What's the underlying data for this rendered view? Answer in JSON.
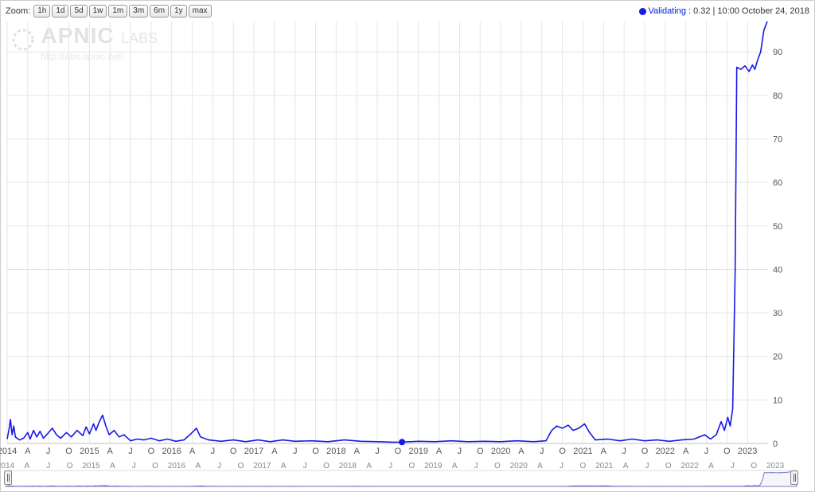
{
  "zoom": {
    "label": "Zoom:",
    "buttons": [
      "1h",
      "1d",
      "5d",
      "1w",
      "1m",
      "3m",
      "6m",
      "1y",
      "max"
    ]
  },
  "legend": {
    "series_name": "Validating",
    "series_color": "#1818e8",
    "value_text": ": 0.32",
    "separator": " | ",
    "timestamp": "10:00 October 24, 2018"
  },
  "watermark": {
    "brand": "APNIC",
    "sub": "LABS",
    "url": "http://abs.apnic.net/",
    "color": "#e2e2e2"
  },
  "chart": {
    "type": "line",
    "background_color": "#ffffff",
    "grid_color": "#e5e5e5",
    "axis_text_color": "#555555",
    "series_color": "#1818e8",
    "line_width": 1.6,
    "ylim": [
      0,
      97
    ],
    "ytick_step": 10,
    "yticks": [
      0,
      10,
      20,
      30,
      40,
      50,
      60,
      70,
      80,
      90
    ],
    "xlim_years": [
      2014,
      2023.25
    ],
    "x_year_ticks": [
      2014,
      2015,
      2016,
      2017,
      2018,
      2019,
      2020,
      2021,
      2022,
      2023
    ],
    "x_minor_labels": [
      "A",
      "J",
      "O"
    ],
    "marker": {
      "x_year": 2018.8,
      "y": 0.32,
      "radius": 4,
      "color": "#1818e8"
    },
    "data": [
      [
        2014.0,
        1.0
      ],
      [
        2014.02,
        3.0
      ],
      [
        2014.04,
        5.5
      ],
      [
        2014.06,
        2.0
      ],
      [
        2014.08,
        4.0
      ],
      [
        2014.1,
        1.5
      ],
      [
        2014.15,
        0.8
      ],
      [
        2014.2,
        1.2
      ],
      [
        2014.25,
        2.5
      ],
      [
        2014.28,
        1.0
      ],
      [
        2014.32,
        3.0
      ],
      [
        2014.36,
        1.5
      ],
      [
        2014.4,
        2.8
      ],
      [
        2014.44,
        1.2
      ],
      [
        2014.48,
        2.0
      ],
      [
        2014.55,
        3.5
      ],
      [
        2014.6,
        2.0
      ],
      [
        2014.65,
        1.2
      ],
      [
        2014.72,
        2.5
      ],
      [
        2014.78,
        1.5
      ],
      [
        2014.85,
        3.0
      ],
      [
        2014.92,
        1.8
      ],
      [
        2014.96,
        3.8
      ],
      [
        2015.0,
        2.2
      ],
      [
        2015.05,
        4.5
      ],
      [
        2015.08,
        3.0
      ],
      [
        2015.12,
        5.0
      ],
      [
        2015.16,
        6.5
      ],
      [
        2015.2,
        4.0
      ],
      [
        2015.24,
        2.0
      ],
      [
        2015.3,
        3.0
      ],
      [
        2015.36,
        1.5
      ],
      [
        2015.42,
        2.0
      ],
      [
        2015.5,
        0.6
      ],
      [
        2015.58,
        1.0
      ],
      [
        2015.66,
        0.8
      ],
      [
        2015.75,
        1.2
      ],
      [
        2015.85,
        0.6
      ],
      [
        2015.95,
        1.0
      ],
      [
        2016.05,
        0.5
      ],
      [
        2016.15,
        0.8
      ],
      [
        2016.25,
        2.5
      ],
      [
        2016.3,
        3.5
      ],
      [
        2016.35,
        1.5
      ],
      [
        2016.45,
        0.8
      ],
      [
        2016.6,
        0.5
      ],
      [
        2016.75,
        0.8
      ],
      [
        2016.9,
        0.4
      ],
      [
        2017.05,
        0.8
      ],
      [
        2017.2,
        0.4
      ],
      [
        2017.35,
        0.8
      ],
      [
        2017.5,
        0.5
      ],
      [
        2017.7,
        0.6
      ],
      [
        2017.9,
        0.4
      ],
      [
        2018.1,
        0.8
      ],
      [
        2018.3,
        0.5
      ],
      [
        2018.5,
        0.4
      ],
      [
        2018.7,
        0.3
      ],
      [
        2018.8,
        0.32
      ],
      [
        2019.0,
        0.5
      ],
      [
        2019.2,
        0.4
      ],
      [
        2019.4,
        0.6
      ],
      [
        2019.6,
        0.4
      ],
      [
        2019.8,
        0.5
      ],
      [
        2020.0,
        0.4
      ],
      [
        2020.2,
        0.6
      ],
      [
        2020.4,
        0.4
      ],
      [
        2020.55,
        0.6
      ],
      [
        2020.62,
        3.0
      ],
      [
        2020.68,
        4.0
      ],
      [
        2020.75,
        3.5
      ],
      [
        2020.82,
        4.2
      ],
      [
        2020.88,
        3.0
      ],
      [
        2020.95,
        3.5
      ],
      [
        2021.02,
        4.5
      ],
      [
        2021.08,
        2.5
      ],
      [
        2021.15,
        0.8
      ],
      [
        2021.3,
        1.0
      ],
      [
        2021.45,
        0.6
      ],
      [
        2021.6,
        1.0
      ],
      [
        2021.75,
        0.6
      ],
      [
        2021.9,
        0.8
      ],
      [
        2022.05,
        0.5
      ],
      [
        2022.2,
        0.8
      ],
      [
        2022.35,
        1.0
      ],
      [
        2022.48,
        2.0
      ],
      [
        2022.55,
        1.0
      ],
      [
        2022.62,
        2.0
      ],
      [
        2022.68,
        5.0
      ],
      [
        2022.72,
        3.0
      ],
      [
        2022.76,
        6.0
      ],
      [
        2022.79,
        4.0
      ],
      [
        2022.82,
        8.0
      ],
      [
        2022.85,
        40.0
      ],
      [
        2022.87,
        86.5
      ],
      [
        2022.92,
        86.0
      ],
      [
        2022.97,
        86.8
      ],
      [
        2023.02,
        85.5
      ],
      [
        2023.06,
        87.0
      ],
      [
        2023.09,
        86.0
      ],
      [
        2023.12,
        88.0
      ],
      [
        2023.16,
        90.0
      ],
      [
        2023.2,
        95.0
      ],
      [
        2023.24,
        97.0
      ]
    ]
  },
  "navigator": {
    "fill_color": "#d8d8f5",
    "stroke_color": "#7878c8",
    "label_color": "#888888",
    "handle_bg": "#f0f0f0",
    "handle_border": "#888888"
  }
}
